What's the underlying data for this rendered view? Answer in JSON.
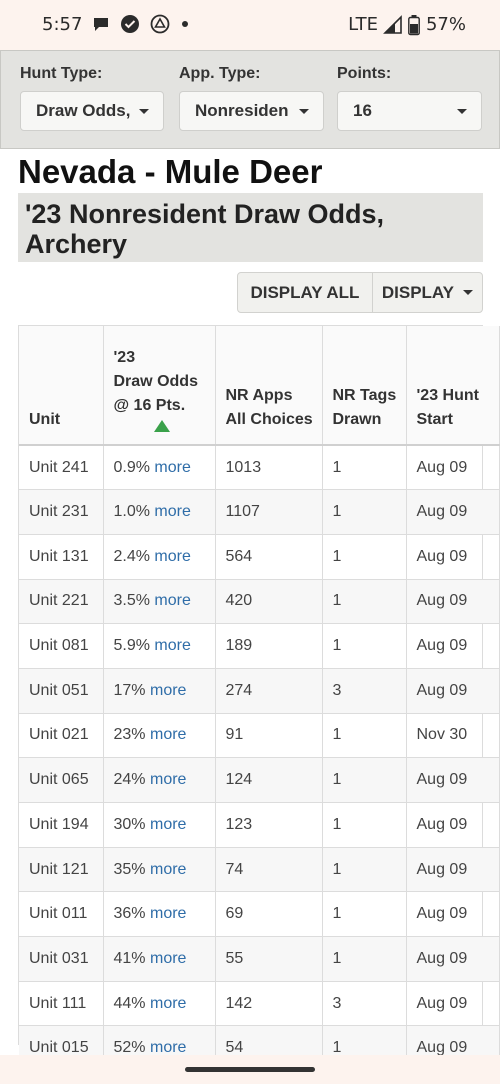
{
  "status": {
    "time": "5:57",
    "network": "LTE",
    "battery": "57%"
  },
  "filters": [
    {
      "label": "Hunt Type:",
      "value": "Draw Odds,"
    },
    {
      "label": "App. Type:",
      "value": "Nonresiden"
    },
    {
      "label": "Points:",
      "value": "16"
    }
  ],
  "title": "Nevada - Mule Deer",
  "subtitle": "'23 Nonresident Draw Odds, Archery",
  "buttons": {
    "display_all": "DISPLAY ALL",
    "display": "DISPLAY"
  },
  "table": {
    "headers": {
      "unit": "Unit",
      "odds_1": "'23",
      "odds_2": "Draw Odds",
      "odds_3": "@ 16 Pts.",
      "apps_1": "NR Apps",
      "apps_2": "All Choices",
      "tags_1": "NR Tags",
      "tags_2": "Drawn",
      "start_1": "'23 Hunt",
      "start_2": "Start"
    },
    "more_label": "more",
    "rows": [
      {
        "unit": "Unit 241",
        "odds": "0.9%",
        "apps": "1013",
        "tags": "1",
        "start": "Aug 09"
      },
      {
        "unit": "Unit 231",
        "odds": "1.0%",
        "apps": "1107",
        "tags": "1",
        "start": "Aug 09"
      },
      {
        "unit": "Unit 131",
        "odds": "2.4%",
        "apps": "564",
        "tags": "1",
        "start": "Aug 09"
      },
      {
        "unit": "Unit 221",
        "odds": "3.5%",
        "apps": "420",
        "tags": "1",
        "start": "Aug 09"
      },
      {
        "unit": "Unit 081",
        "odds": "5.9%",
        "apps": "189",
        "tags": "1",
        "start": "Aug 09"
      },
      {
        "unit": "Unit 051",
        "odds": "17%",
        "apps": "274",
        "tags": "3",
        "start": "Aug 09"
      },
      {
        "unit": "Unit 021",
        "odds": "23%",
        "apps": "91",
        "tags": "1",
        "start": "Nov 30"
      },
      {
        "unit": "Unit 065",
        "odds": "24%",
        "apps": "124",
        "tags": "1",
        "start": "Aug 09"
      },
      {
        "unit": "Unit 194",
        "odds": "30%",
        "apps": "123",
        "tags": "1",
        "start": "Aug 09"
      },
      {
        "unit": "Unit 121",
        "odds": "35%",
        "apps": "74",
        "tags": "1",
        "start": "Aug 09"
      },
      {
        "unit": "Unit 011",
        "odds": "36%",
        "apps": "69",
        "tags": "1",
        "start": "Aug 09"
      },
      {
        "unit": "Unit 031",
        "odds": "41%",
        "apps": "55",
        "tags": "1",
        "start": "Aug 09"
      },
      {
        "unit": "Unit 111",
        "odds": "44%",
        "apps": "142",
        "tags": "3",
        "start": "Aug 09"
      },
      {
        "unit": "Unit 015",
        "odds": "52%",
        "apps": "54",
        "tags": "1",
        "start": "Aug 09"
      }
    ]
  }
}
